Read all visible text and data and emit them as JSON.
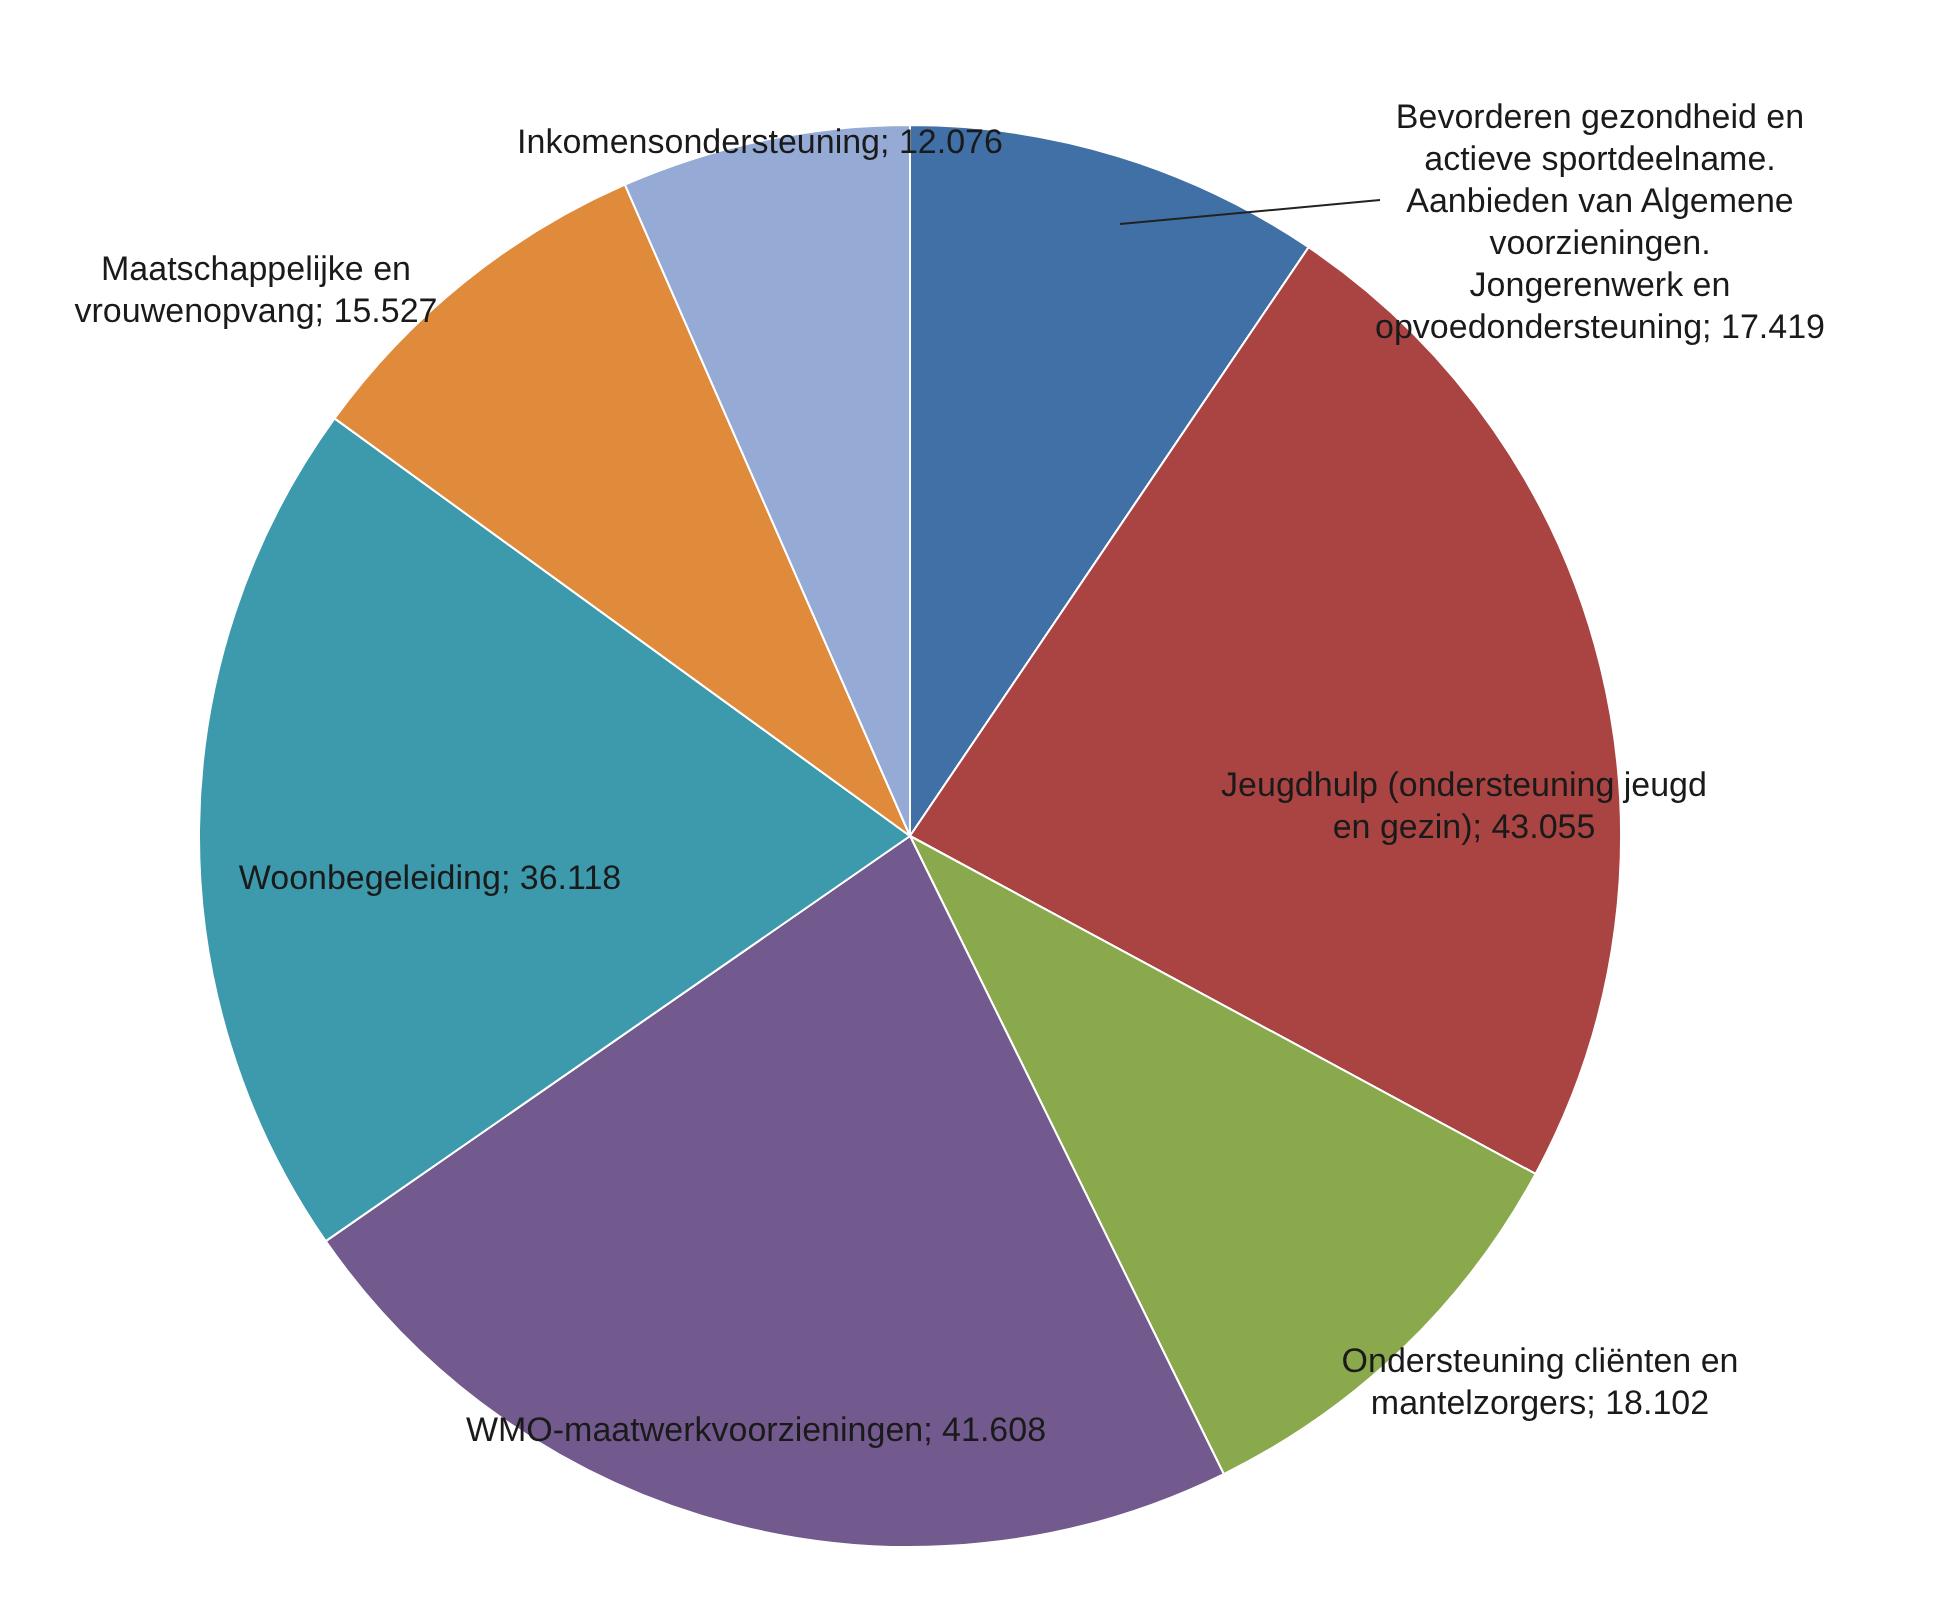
{
  "chart_data": {
    "type": "pie",
    "categories": [
      "Bevorderen gezondheid en actieve sportdeelname. Aanbieden van Algemene voorzieningen. Jongerenwerk en opvoedondersteuning",
      "Jeugdhulp (ondersteuning jeugd en gezin)",
      "Ondersteuning cliënten en mantelzorgers",
      "WMO-maatwerkvoorzieningen",
      "Woonbegeleiding",
      "Maatschappelijke en vrouwenopvang",
      "Inkomensondersteuning"
    ],
    "values": [
      17419,
      43055,
      18102,
      41608,
      36118,
      15527,
      12076
    ],
    "value_labels": [
      "17.419",
      "43.055",
      "18.102",
      "41.608",
      "36.118",
      "15.527",
      "12.076"
    ],
    "colors": [
      "#4170a6",
      "#a94442",
      "#8aa84c",
      "#735a8e",
      "#3c9aac",
      "#e08a3c",
      "#95aad4"
    ],
    "legend": false
  }
}
